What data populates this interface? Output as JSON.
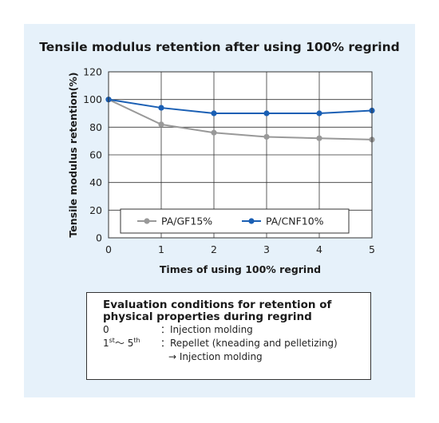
{
  "chart_data": {
    "type": "line",
    "title": "Tensile modulus retention after using 100% regrind",
    "xlabel": "Times of using 100% regrind",
    "ylabel": "Tensile modulus retention(%)",
    "x": [
      0,
      1,
      2,
      3,
      4,
      5
    ],
    "xlim": [
      0,
      5
    ],
    "ylim": [
      0,
      120
    ],
    "yticks": [
      0,
      20,
      40,
      60,
      80,
      100,
      120
    ],
    "grid": true,
    "legend": "bottom-inside",
    "series": [
      {
        "name": "PA/GF15%",
        "color": "#999999",
        "values": [
          100,
          82,
          76,
          73,
          72,
          71
        ]
      },
      {
        "name": "PA/CNF10%",
        "color": "#1a5fb4",
        "values": [
          100,
          94,
          90,
          90,
          90,
          92
        ]
      }
    ]
  },
  "conditions": {
    "title": "Evaluation conditions for retention of physical properties during regrind",
    "rows": [
      {
        "key": "0",
        "value": "：Injection molding"
      },
      {
        "key_main": "1",
        "key_sup1": "st",
        "key_mid": "～ 5",
        "key_sup2": "th",
        "value": "：Repellet (kneading and pelletizing)"
      }
    ],
    "continuation": "→ Injection molding"
  },
  "colors": {
    "panel": "#e6f1fa",
    "frame": "#333333",
    "grid": "#333333"
  }
}
